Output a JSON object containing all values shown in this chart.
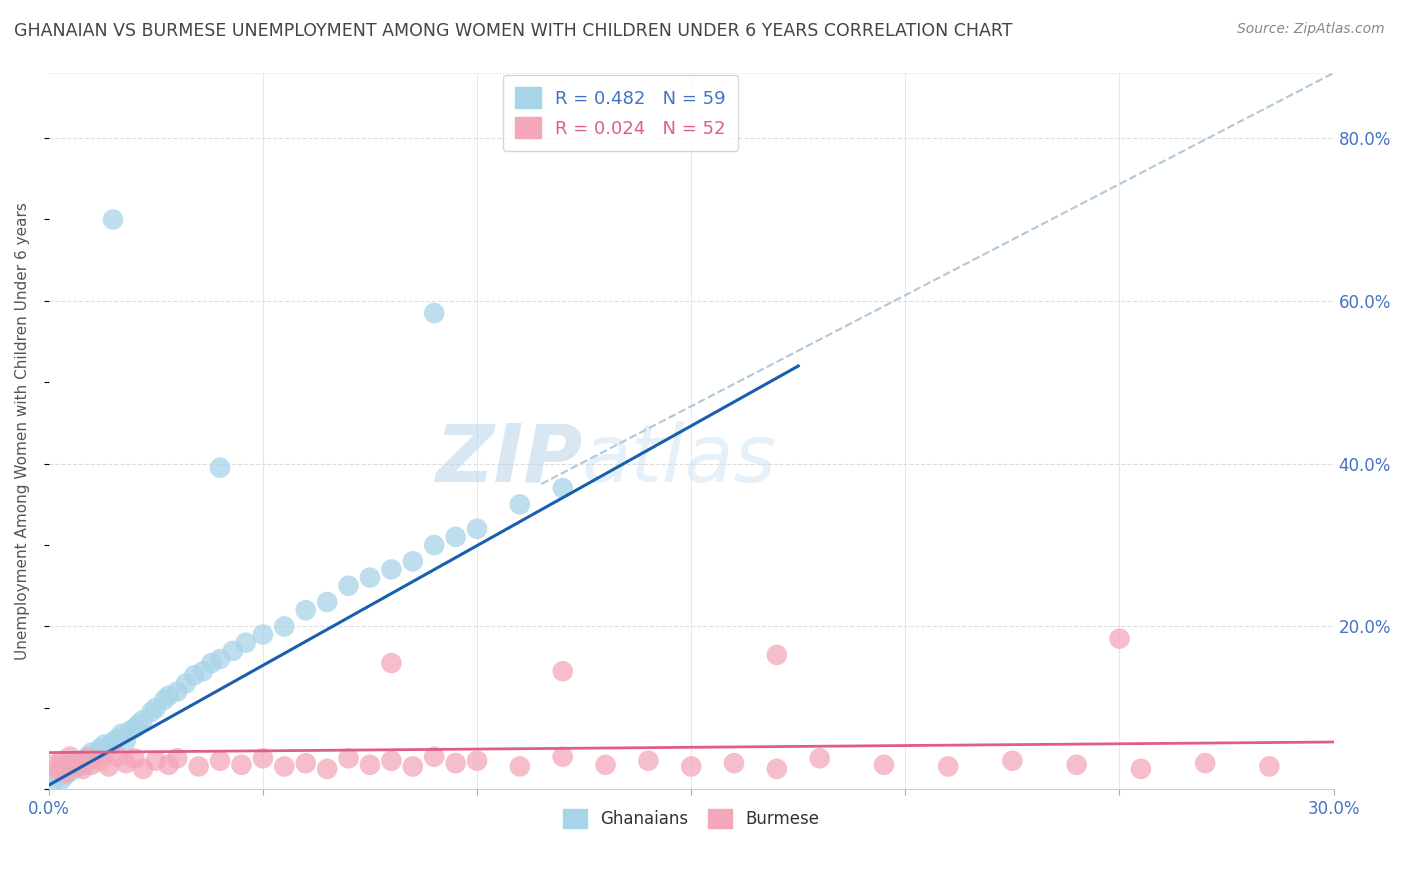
{
  "title": "GHANAIAN VS BURMESE UNEMPLOYMENT AMONG WOMEN WITH CHILDREN UNDER 6 YEARS CORRELATION CHART",
  "source": "Source: ZipAtlas.com",
  "ylabel": "Unemployment Among Women with Children Under 6 years",
  "xlim": [
    0.0,
    0.3
  ],
  "ylim": [
    0.0,
    0.88
  ],
  "xtick_positions": [
    0.0,
    0.05,
    0.1,
    0.15,
    0.2,
    0.25,
    0.3
  ],
  "xticklabels": [
    "0.0%",
    "",
    "",
    "",
    "",
    "",
    "30.0%"
  ],
  "ytick_positions": [
    0.0,
    0.2,
    0.4,
    0.6,
    0.8
  ],
  "yticklabels_right": [
    "",
    "20.0%",
    "40.0%",
    "60.0%",
    "80.0%"
  ],
  "blue_color": "#a8d4e8",
  "blue_line_color": "#1a5fad",
  "pink_color": "#f4a7b9",
  "pink_line_color": "#e05c8a",
  "ref_line_color": "#b0c8d8",
  "grid_color": "#dddddd",
  "legend_R1": "R = 0.482",
  "legend_N1": "N = 59",
  "legend_R2": "R = 0.024",
  "legend_N2": "N = 52",
  "blue_line_x0": 0.0,
  "blue_line_y0": 0.005,
  "blue_line_x1": 0.175,
  "blue_line_y1": 0.52,
  "pink_line_x0": 0.0,
  "pink_line_y0": 0.045,
  "pink_line_x1": 0.3,
  "pink_line_y1": 0.058,
  "ref_line_x0": 0.115,
  "ref_line_y0": 0.375,
  "ref_line_x1": 0.3,
  "ref_line_y1": 0.88,
  "ghanaian_x": [
    0.001,
    0.002,
    0.003,
    0.003,
    0.004,
    0.004,
    0.005,
    0.005,
    0.006,
    0.006,
    0.007,
    0.007,
    0.008,
    0.008,
    0.009,
    0.009,
    0.01,
    0.01,
    0.011,
    0.012,
    0.012,
    0.013,
    0.014,
    0.015,
    0.016,
    0.017,
    0.018,
    0.019,
    0.02,
    0.021,
    0.022,
    0.024,
    0.025,
    0.027,
    0.028,
    0.03,
    0.032,
    0.034,
    0.036,
    0.038,
    0.04,
    0.043,
    0.046,
    0.05,
    0.055,
    0.06,
    0.065,
    0.07,
    0.075,
    0.08,
    0.085,
    0.09,
    0.095,
    0.1,
    0.11,
    0.12,
    0.015,
    0.04,
    0.09
  ],
  "ghanaian_y": [
    0.01,
    0.015,
    0.02,
    0.012,
    0.025,
    0.018,
    0.03,
    0.022,
    0.035,
    0.025,
    0.028,
    0.032,
    0.035,
    0.03,
    0.04,
    0.035,
    0.045,
    0.038,
    0.042,
    0.05,
    0.045,
    0.055,
    0.05,
    0.058,
    0.062,
    0.068,
    0.06,
    0.072,
    0.075,
    0.08,
    0.085,
    0.095,
    0.1,
    0.11,
    0.115,
    0.12,
    0.13,
    0.14,
    0.145,
    0.155,
    0.16,
    0.17,
    0.18,
    0.19,
    0.2,
    0.22,
    0.23,
    0.25,
    0.26,
    0.27,
    0.28,
    0.3,
    0.31,
    0.32,
    0.35,
    0.37,
    0.7,
    0.395,
    0.585
  ],
  "burmese_x": [
    0.001,
    0.002,
    0.003,
    0.004,
    0.005,
    0.006,
    0.007,
    0.008,
    0.009,
    0.01,
    0.012,
    0.014,
    0.016,
    0.018,
    0.02,
    0.022,
    0.025,
    0.028,
    0.03,
    0.035,
    0.04,
    0.045,
    0.05,
    0.055,
    0.06,
    0.065,
    0.07,
    0.075,
    0.08,
    0.085,
    0.09,
    0.095,
    0.1,
    0.11,
    0.12,
    0.13,
    0.14,
    0.15,
    0.16,
    0.17,
    0.18,
    0.195,
    0.21,
    0.225,
    0.24,
    0.255,
    0.27,
    0.285,
    0.17,
    0.25,
    0.12,
    0.08
  ],
  "burmese_y": [
    0.03,
    0.025,
    0.035,
    0.02,
    0.04,
    0.028,
    0.032,
    0.025,
    0.038,
    0.03,
    0.035,
    0.028,
    0.04,
    0.032,
    0.038,
    0.025,
    0.035,
    0.03,
    0.038,
    0.028,
    0.035,
    0.03,
    0.038,
    0.028,
    0.032,
    0.025,
    0.038,
    0.03,
    0.035,
    0.028,
    0.04,
    0.032,
    0.035,
    0.028,
    0.04,
    0.03,
    0.035,
    0.028,
    0.032,
    0.025,
    0.038,
    0.03,
    0.028,
    0.035,
    0.03,
    0.025,
    0.032,
    0.028,
    0.165,
    0.185,
    0.145,
    0.155
  ]
}
